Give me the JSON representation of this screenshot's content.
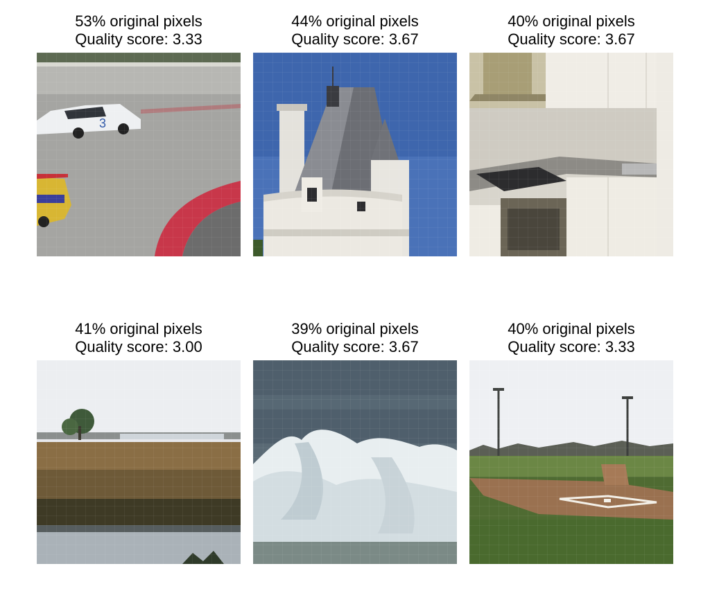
{
  "panels": [
    {
      "pixels": "53% original pixels",
      "quality": "Quality score: 3.33",
      "scene": "race-track"
    },
    {
      "pixels": "44% original pixels",
      "quality": "Quality score: 3.67",
      "scene": "castle-tower"
    },
    {
      "pixels": "40% original pixels",
      "quality": "Quality score: 3.67",
      "scene": "kitchen"
    },
    {
      "pixels": "41% original pixels",
      "quality": "Quality score: 3.00",
      "scene": "marsh"
    },
    {
      "pixels": "39% original pixels",
      "quality": "Quality score: 3.67",
      "scene": "ocean-wave"
    },
    {
      "pixels": "40% original pixels",
      "quality": "Quality score: 3.33",
      "scene": "baseball-field"
    }
  ]
}
